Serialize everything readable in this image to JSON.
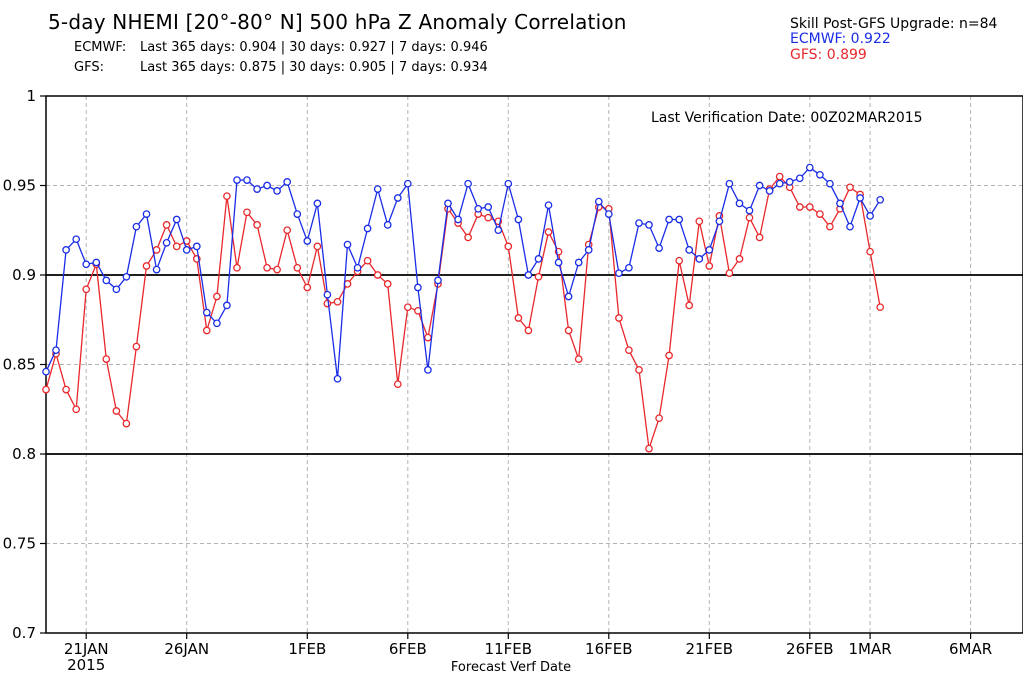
{
  "header": {
    "title": "5-day NHEMI [20°-80° N] 500 hPa Z Anomaly Correlation",
    "ecmwf_label": "ECMWF:",
    "ecmwf_stats": "Last 365 days: 0.904 | 30 days: 0.927 | 7 days: 0.946",
    "gfs_label": "GFS:",
    "gfs_stats": "Last 365 days: 0.875 | 30 days: 0.905 | 7 days: 0.934"
  },
  "skill_box": {
    "heading": "Skill Post-GFS Upgrade: n=84",
    "ecmwf": "ECMWF: 0.922",
    "gfs": "GFS: 0.899"
  },
  "last_verification": "Last Verification Date: 00Z02MAR2015",
  "colors": {
    "ecmwf": "#1a2de6",
    "gfs": "#e8282c",
    "grid": "#b4b4b4"
  },
  "chart_data": {
    "type": "line",
    "title": "5-day NHEMI [20°-80° N] 500 hPa Z Anomaly Correlation",
    "xlabel": "Forecast Verf Date",
    "ylabel": "",
    "ylim": [
      0.7,
      1
    ],
    "yticks": [
      {
        "value": 0.7,
        "label": "0.7"
      },
      {
        "value": 0.75,
        "label": "0.75"
      },
      {
        "value": 0.8,
        "label": "0.8"
      },
      {
        "value": 0.85,
        "label": "0.85"
      },
      {
        "value": 0.9,
        "label": "0.9"
      },
      {
        "value": 0.95,
        "label": "0.95"
      },
      {
        "value": 1,
        "label": "1"
      }
    ],
    "reference_lines": [
      0.8,
      0.9
    ],
    "x_start_date": "19JAN2015",
    "xlim_days": [
      0,
      47
    ],
    "xticks": [
      {
        "day": 2,
        "label": "21JAN"
      },
      {
        "day": 7,
        "label": "26JAN"
      },
      {
        "day": 13,
        "label": "1FEB"
      },
      {
        "day": 18,
        "label": "6FEB"
      },
      {
        "day": 23,
        "label": "11FEB"
      },
      {
        "day": 28,
        "label": "16FEB"
      },
      {
        "day": 33,
        "label": "21FEB"
      },
      {
        "day": 38,
        "label": "26FEB"
      },
      {
        "day": 41,
        "label": "1MAR"
      },
      {
        "day": 46,
        "label": "6MAR"
      }
    ],
    "x_sublabel": {
      "day": 2,
      "label": "2015"
    },
    "series": [
      {
        "name": "ECMWF",
        "x_start": 0,
        "x_step": 0.5,
        "values": [
          0.846,
          0.858,
          0.914,
          0.92,
          0.906,
          0.907,
          0.897,
          0.892,
          0.899,
          0.927,
          0.934,
          0.903,
          0.918,
          0.931,
          0.914,
          0.916,
          0.879,
          0.873,
          0.883,
          0.953,
          0.953,
          0.948,
          0.95,
          0.947,
          0.952,
          0.934,
          0.919,
          0.94,
          0.889,
          0.842,
          0.917,
          0.904,
          0.926,
          0.948,
          0.928,
          0.943,
          0.951,
          0.893,
          0.847,
          0.897,
          0.94,
          0.931,
          0.951,
          0.937,
          0.938,
          0.925,
          0.951,
          0.931,
          0.9,
          0.909,
          0.939,
          0.907,
          0.888,
          0.907,
          0.914,
          0.941,
          0.934,
          0.901,
          0.904,
          0.929,
          0.928,
          0.915,
          0.931,
          0.931,
          0.914,
          0.909,
          0.914,
          0.93,
          0.951,
          0.94,
          0.936,
          0.95,
          0.947,
          0.951,
          0.952,
          0.954,
          0.96,
          0.956,
          0.951,
          0.94,
          0.927,
          0.943,
          0.933,
          0.942
        ]
      },
      {
        "name": "GFS",
        "x_start": 0,
        "x_step": 0.5,
        "values": [
          0.836,
          0.856,
          0.836,
          0.825,
          0.892,
          0.906,
          0.853,
          0.824,
          0.817,
          0.86,
          0.905,
          0.914,
          0.928,
          0.916,
          0.919,
          0.909,
          0.869,
          0.888,
          0.944,
          0.904,
          0.935,
          0.928,
          0.904,
          0.903,
          0.925,
          0.904,
          0.893,
          0.916,
          0.884,
          0.885,
          0.895,
          0.902,
          0.908,
          0.9,
          0.895,
          0.839,
          0.882,
          0.88,
          0.865,
          0.895,
          0.937,
          0.929,
          0.921,
          0.934,
          0.932,
          0.93,
          0.916,
          0.876,
          0.869,
          0.899,
          0.924,
          0.913,
          0.869,
          0.853,
          0.917,
          0.938,
          0.937,
          0.876,
          0.858,
          0.847,
          0.803,
          0.82,
          0.855,
          0.908,
          0.883,
          0.93,
          0.905,
          0.933,
          0.901,
          0.909,
          0.932,
          0.921,
          0.948,
          0.955,
          0.949,
          0.938,
          0.938,
          0.934,
          0.927,
          0.937,
          0.949,
          0.945,
          0.913,
          0.882
        ]
      }
    ]
  }
}
